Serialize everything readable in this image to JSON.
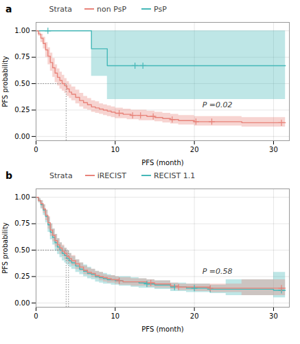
{
  "chart_data": [
    {
      "type": "step",
      "title": "a",
      "x_label": "PFS (month)",
      "y_label": "PFS probability",
      "xlim": [
        0,
        32
      ],
      "ylim": [
        -0.04,
        1.08
      ],
      "xticks": [
        0,
        10,
        20,
        30
      ],
      "yticks": [
        {
          "value": 0.0,
          "label": "0.00"
        },
        {
          "value": 0.25,
          "label": "0.25"
        },
        {
          "value": 0.5,
          "label": "0.50"
        },
        {
          "value": 0.75,
          "label": "0.75"
        },
        {
          "value": 1.0,
          "label": "1.00"
        }
      ],
      "grid": true,
      "legend": "top",
      "legend_title": "Strata",
      "annotations": [
        {
          "text": "P =0.02",
          "x": 21,
          "y": 0.3
        }
      ],
      "median_lines": [
        {
          "x": 3.8,
          "y": 0.5
        }
      ],
      "series": [
        {
          "name": "non PsP",
          "color": "#E8837A",
          "x": [
            0,
            0.3,
            0.6,
            0.9,
            1.2,
            1.5,
            1.8,
            2.1,
            2.4,
            2.7,
            3.0,
            3.3,
            3.6,
            3.9,
            4.2,
            4.5,
            5.0,
            5.5,
            6.0,
            6.5,
            7.0,
            7.5,
            8.0,
            8.5,
            9.0,
            9.5,
            10.0,
            10.5,
            11.0,
            11.5,
            12.0,
            13.0,
            14.0,
            15.0,
            16.0,
            17.0,
            18.0,
            19.0,
            20.0,
            21.0,
            22.0,
            24.0,
            26.0,
            28.0,
            30.0,
            31.5
          ],
          "values": [
            1.0,
            0.97,
            0.93,
            0.88,
            0.82,
            0.76,
            0.7,
            0.65,
            0.6,
            0.56,
            0.53,
            0.5,
            0.48,
            0.45,
            0.42,
            0.4,
            0.37,
            0.34,
            0.32,
            0.3,
            0.28,
            0.27,
            0.26,
            0.25,
            0.24,
            0.23,
            0.22,
            0.22,
            0.21,
            0.21,
            0.2,
            0.2,
            0.19,
            0.18,
            0.17,
            0.16,
            0.15,
            0.15,
            0.14,
            0.14,
            0.14,
            0.14,
            0.13,
            0.13,
            0.13,
            0.13
          ],
          "upper": [
            1.0,
            0.99,
            0.97,
            0.94,
            0.89,
            0.84,
            0.79,
            0.74,
            0.68,
            0.64,
            0.61,
            0.58,
            0.55,
            0.52,
            0.49,
            0.47,
            0.44,
            0.41,
            0.38,
            0.36,
            0.34,
            0.33,
            0.31,
            0.3,
            0.29,
            0.28,
            0.27,
            0.27,
            0.26,
            0.26,
            0.25,
            0.25,
            0.24,
            0.23,
            0.22,
            0.21,
            0.2,
            0.2,
            0.19,
            0.19,
            0.19,
            0.19,
            0.18,
            0.18,
            0.18,
            0.18
          ],
          "lower": [
            1.0,
            0.95,
            0.89,
            0.83,
            0.75,
            0.68,
            0.62,
            0.56,
            0.51,
            0.48,
            0.45,
            0.43,
            0.41,
            0.38,
            0.36,
            0.34,
            0.31,
            0.28,
            0.26,
            0.25,
            0.23,
            0.22,
            0.21,
            0.2,
            0.19,
            0.18,
            0.17,
            0.17,
            0.17,
            0.16,
            0.16,
            0.15,
            0.15,
            0.14,
            0.13,
            0.12,
            0.11,
            0.11,
            0.1,
            0.1,
            0.1,
            0.1,
            0.09,
            0.09,
            0.09,
            0.09
          ],
          "censor_x": [
            10.5,
            12.2,
            13.2,
            14.8,
            17.2,
            20.2,
            22.2,
            31.0
          ],
          "censor_y": [
            0.22,
            0.2,
            0.2,
            0.19,
            0.16,
            0.14,
            0.14,
            0.13
          ]
        },
        {
          "name": "PsP",
          "color": "#45B8B8",
          "x": [
            0,
            7.0,
            7.0,
            9.0,
            9.0,
            12.0,
            31.5
          ],
          "values": [
            1.0,
            1.0,
            0.83,
            0.83,
            0.67,
            0.67,
            0.67
          ],
          "upper": [
            1.0,
            1.0,
            1.0,
            1.0,
            1.0,
            1.0,
            1.0
          ],
          "lower": [
            1.0,
            1.0,
            0.57,
            0.57,
            0.35,
            0.35,
            0.35
          ],
          "censor_x": [
            1.5,
            12.5,
            13.5
          ],
          "censor_y": [
            1.0,
            0.67,
            0.67
          ]
        }
      ]
    },
    {
      "type": "step",
      "title": "b",
      "x_label": "PFS (month)",
      "y_label": "PFS probability",
      "xlim": [
        0,
        32
      ],
      "ylim": [
        -0.04,
        1.08
      ],
      "xticks": [
        0,
        10,
        20,
        30
      ],
      "yticks": [
        {
          "value": 0.0,
          "label": "0.00"
        },
        {
          "value": 0.25,
          "label": "0.25"
        },
        {
          "value": 0.5,
          "label": "0.50"
        },
        {
          "value": 0.75,
          "label": "0.75"
        },
        {
          "value": 1.0,
          "label": "1.00"
        }
      ],
      "grid": true,
      "legend": "top",
      "legend_title": "Strata",
      "annotations": [
        {
          "text": "P =0.58",
          "x": 21,
          "y": 0.3
        }
      ],
      "median_lines": [
        {
          "x": 3.8,
          "y": 0.5
        },
        {
          "x": 4.1,
          "y": 0.5
        }
      ],
      "series": [
        {
          "name": "iRECIST",
          "color": "#E8837A",
          "x": [
            0,
            0.3,
            0.6,
            0.9,
            1.2,
            1.5,
            1.8,
            2.1,
            2.4,
            2.7,
            3.0,
            3.3,
            3.6,
            3.9,
            4.2,
            4.5,
            5.0,
            5.5,
            6.0,
            6.5,
            7.0,
            7.5,
            8.0,
            8.5,
            9.0,
            9.5,
            10.0,
            10.5,
            11.0,
            12.0,
            13.0,
            14.0,
            15.0,
            17.0,
            18.0,
            19.0,
            20.0,
            22.0,
            24.0,
            26.0,
            28.0,
            30.0,
            31.5
          ],
          "values": [
            1.0,
            0.97,
            0.94,
            0.89,
            0.83,
            0.76,
            0.69,
            0.64,
            0.59,
            0.55,
            0.52,
            0.49,
            0.47,
            0.44,
            0.42,
            0.4,
            0.37,
            0.34,
            0.31,
            0.29,
            0.28,
            0.26,
            0.25,
            0.24,
            0.23,
            0.22,
            0.22,
            0.21,
            0.2,
            0.2,
            0.2,
            0.19,
            0.18,
            0.16,
            0.15,
            0.15,
            0.15,
            0.14,
            0.14,
            0.14,
            0.14,
            0.14,
            0.14
          ],
          "upper": [
            1.0,
            0.99,
            0.97,
            0.93,
            0.88,
            0.82,
            0.75,
            0.7,
            0.65,
            0.61,
            0.57,
            0.55,
            0.52,
            0.49,
            0.47,
            0.45,
            0.41,
            0.38,
            0.35,
            0.33,
            0.32,
            0.3,
            0.29,
            0.27,
            0.26,
            0.26,
            0.25,
            0.24,
            0.24,
            0.23,
            0.23,
            0.22,
            0.21,
            0.19,
            0.18,
            0.18,
            0.18,
            0.18,
            0.18,
            0.22,
            0.22,
            0.22,
            0.22
          ],
          "lower": [
            1.0,
            0.95,
            0.9,
            0.85,
            0.78,
            0.7,
            0.63,
            0.58,
            0.53,
            0.49,
            0.46,
            0.44,
            0.41,
            0.39,
            0.37,
            0.35,
            0.32,
            0.3,
            0.27,
            0.26,
            0.24,
            0.23,
            0.21,
            0.2,
            0.19,
            0.19,
            0.18,
            0.17,
            0.17,
            0.16,
            0.16,
            0.15,
            0.14,
            0.13,
            0.12,
            0.12,
            0.11,
            0.1,
            0.1,
            0.07,
            0.07,
            0.07,
            0.07
          ],
          "censor_x": [
            10.5,
            14.5,
            18.0,
            22.0,
            31.0
          ],
          "censor_y": [
            0.21,
            0.19,
            0.15,
            0.14,
            0.14
          ]
        },
        {
          "name": "RECIST 1.1",
          "color": "#45B8B8",
          "x": [
            0,
            0.3,
            0.6,
            0.9,
            1.2,
            1.5,
            1.8,
            2.1,
            2.4,
            2.7,
            3.0,
            3.3,
            3.6,
            3.9,
            4.2,
            4.5,
            5.0,
            5.5,
            6.0,
            6.5,
            7.0,
            7.5,
            8.0,
            8.5,
            9.0,
            9.5,
            10.0,
            10.5,
            11.0,
            12.0,
            13.0,
            14.0,
            15.0,
            17.0,
            18.0,
            19.0,
            20.0,
            22.0,
            24.0,
            26.0,
            28.0,
            30.0,
            31.5
          ],
          "values": [
            1.0,
            0.97,
            0.93,
            0.88,
            0.82,
            0.74,
            0.67,
            0.62,
            0.57,
            0.53,
            0.5,
            0.47,
            0.45,
            0.42,
            0.4,
            0.38,
            0.35,
            0.32,
            0.3,
            0.28,
            0.27,
            0.25,
            0.24,
            0.23,
            0.22,
            0.22,
            0.21,
            0.21,
            0.2,
            0.2,
            0.19,
            0.18,
            0.17,
            0.15,
            0.15,
            0.14,
            0.14,
            0.13,
            0.13,
            0.13,
            0.13,
            0.12,
            0.12
          ],
          "upper": [
            1.0,
            0.99,
            0.97,
            0.93,
            0.88,
            0.81,
            0.75,
            0.7,
            0.65,
            0.61,
            0.57,
            0.54,
            0.52,
            0.49,
            0.47,
            0.44,
            0.41,
            0.38,
            0.36,
            0.34,
            0.32,
            0.3,
            0.29,
            0.28,
            0.27,
            0.26,
            0.25,
            0.25,
            0.25,
            0.24,
            0.23,
            0.22,
            0.21,
            0.19,
            0.19,
            0.18,
            0.18,
            0.17,
            0.22,
            0.22,
            0.22,
            0.29,
            0.29
          ],
          "lower": [
            1.0,
            0.95,
            0.89,
            0.83,
            0.76,
            0.67,
            0.6,
            0.55,
            0.49,
            0.46,
            0.43,
            0.4,
            0.38,
            0.36,
            0.34,
            0.32,
            0.29,
            0.27,
            0.25,
            0.23,
            0.22,
            0.2,
            0.19,
            0.18,
            0.18,
            0.17,
            0.17,
            0.16,
            0.16,
            0.15,
            0.14,
            0.14,
            0.13,
            0.11,
            0.11,
            0.1,
            0.1,
            0.09,
            0.07,
            0.07,
            0.07,
            0.05,
            0.05
          ],
          "censor_x": [
            10.5,
            14.0,
            17.5,
            20.0,
            22.0,
            31.0
          ],
          "censor_y": [
            0.21,
            0.18,
            0.15,
            0.14,
            0.13,
            0.12
          ]
        }
      ]
    }
  ]
}
